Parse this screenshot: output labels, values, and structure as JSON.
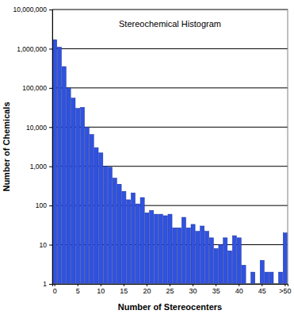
{
  "chart_data": {
    "type": "bar",
    "title": "Stereochemical Histogram",
    "x_label": "Number of Stereocenters",
    "y_label": "Number of Chemicals",
    "categories": [
      "0",
      null,
      null,
      null,
      null,
      "5",
      null,
      null,
      null,
      null,
      "10",
      null,
      null,
      null,
      null,
      "15",
      null,
      null,
      null,
      null,
      "20",
      null,
      null,
      null,
      null,
      "25",
      null,
      null,
      null,
      null,
      "30",
      null,
      null,
      null,
      null,
      "35",
      null,
      null,
      null,
      null,
      "40",
      null,
      null,
      null,
      null,
      "45",
      null,
      null,
      null,
      null,
      ">50"
    ],
    "values": [
      1700000,
      1100000,
      350000,
      100000,
      55000,
      30000,
      32000,
      10000,
      6500,
      3000,
      2200,
      1000,
      950,
      500,
      350,
      230,
      140,
      210,
      110,
      160,
      65,
      75,
      60,
      60,
      55,
      60,
      27,
      27,
      50,
      27,
      33,
      22,
      30,
      22,
      15,
      8,
      10,
      15,
      7,
      17,
      15,
      3,
      null,
      2,
      null,
      4,
      2,
      2,
      null,
      2,
      20
    ],
    "color": "#2f52e0",
    "log": "y",
    "grid": true,
    "ylim": [
      1,
      10000000
    ],
    "yticks": [
      1,
      10,
      100,
      {
        "value": 1000,
        "label": "1,000"
      },
      {
        "value": 10000,
        "label": "10,000"
      },
      {
        "value": 100000,
        "label": "100,000"
      },
      {
        "value": 1000000,
        "label": "1,000,000"
      },
      {
        "value": 10000000,
        "label": "10,000,000"
      }
    ]
  }
}
